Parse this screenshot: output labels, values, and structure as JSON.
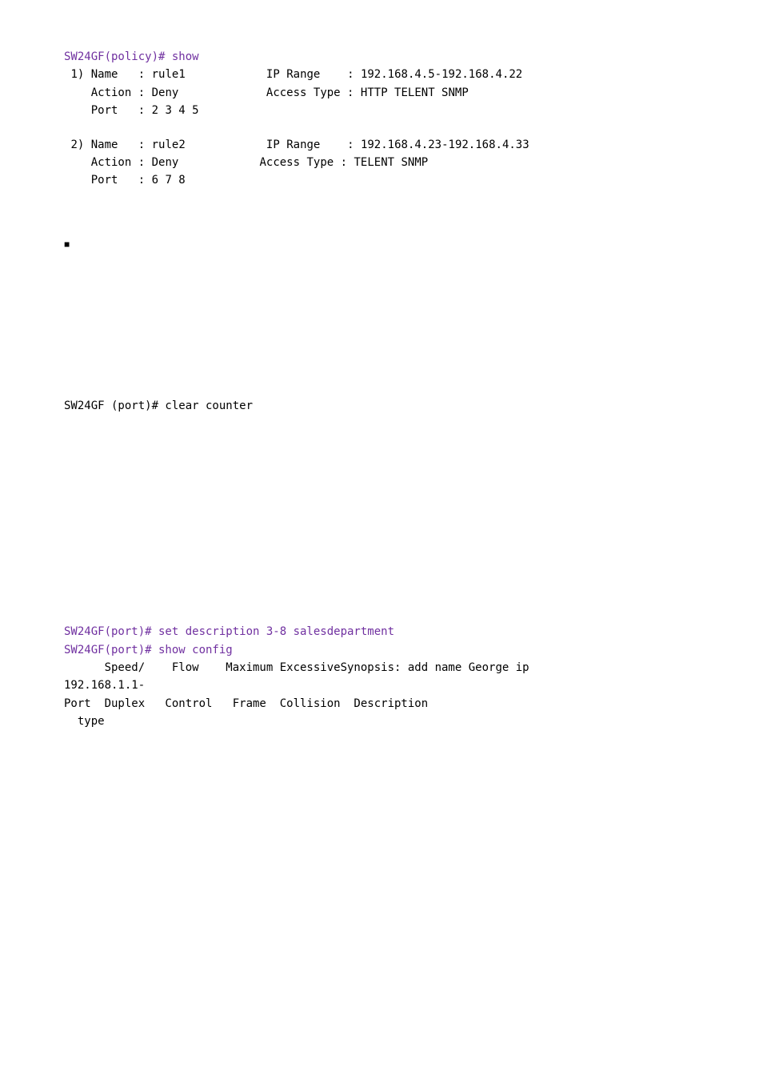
{
  "section1": {
    "prompt": "SW24GF(policy)# show",
    "rules": [
      {
        "idx": "1)",
        "name_label": "Name   :",
        "name": "rule1",
        "ip_label": "IP Range    :",
        "ip": "192.168.4.5-192.168.4.22",
        "action_label": "Action :",
        "action": "Deny",
        "access_label": "Access Type :",
        "access": "HTTP TELENT SNMP",
        "port_label": "Port   :",
        "port": "2 3 4 5"
      },
      {
        "idx": "2)",
        "name_label": "Name   :",
        "name": "rule2",
        "ip_label": "IP Range    :",
        "ip": "192.168.4.23-192.168.4.33",
        "action_label": "Action :",
        "action": "Deny",
        "access_label": "Access Type :",
        "access": "TELENT SNMP",
        "port_label": "Port   :",
        "port": "6 7 8"
      }
    ]
  },
  "bullet": "■",
  "section2": {
    "line": "SW24GF (port)# clear counter"
  },
  "section3": {
    "l1": "SW24GF(port)# set description 3-8 salesdepartment",
    "l2": "SW24GF(port)# show config",
    "l3": "      Speed/    Flow    Maximum ExcessiveSynopsis: add name George ip",
    "l4": "192.168.1.1-",
    "l5": "Port  Duplex   Control   Frame  Collision  Description",
    "l6": "  type"
  }
}
